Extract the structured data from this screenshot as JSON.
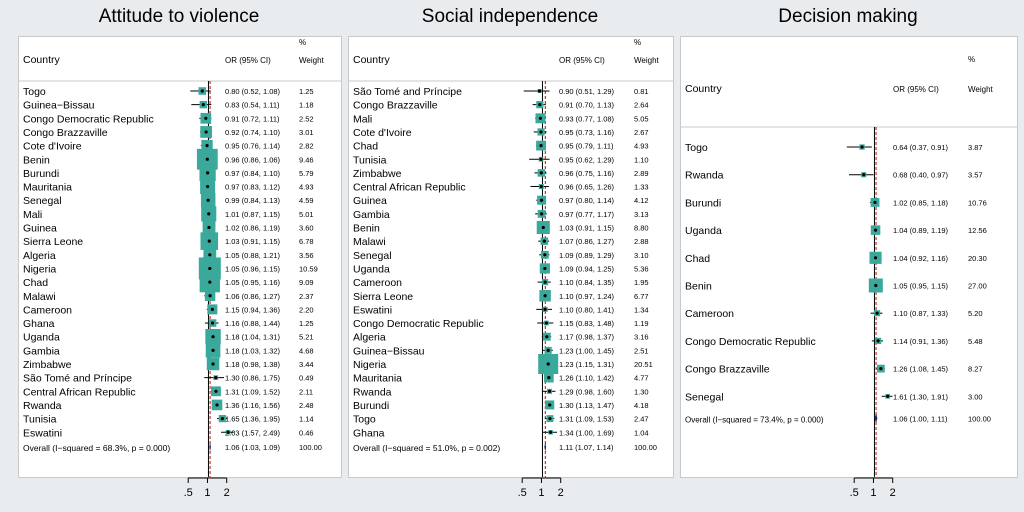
{
  "chart_data": [
    {
      "type": "forest",
      "title": "Attitude to violence",
      "header": {
        "country": "Country",
        "or": "OR (95% CI)",
        "weight_pct": "%",
        "weight": "Weight"
      },
      "x_ticks": [
        ".5",
        "1",
        "2"
      ],
      "x_tick_values": [
        0.5,
        1,
        2
      ],
      "xlim": [
        0.4,
        2.6
      ],
      "overall_line": 1.06,
      "rows": [
        {
          "country": "Togo",
          "or": 0.8,
          "lo": 0.52,
          "hi": 1.08,
          "ci_text": "0.80 (0.52, 1.08)",
          "weight": 1.25,
          "weight_text": "1.25"
        },
        {
          "country": "Guinea−Bissau",
          "or": 0.83,
          "lo": 0.54,
          "hi": 1.11,
          "ci_text": "0.83 (0.54, 1.11)",
          "weight": 1.18,
          "weight_text": "1.18"
        },
        {
          "country": "Congo Democratic Republic",
          "or": 0.91,
          "lo": 0.72,
          "hi": 1.11,
          "ci_text": "0.91 (0.72, 1.11)",
          "weight": 2.52,
          "weight_text": "2.52"
        },
        {
          "country": "Congo Brazzaville",
          "or": 0.92,
          "lo": 0.74,
          "hi": 1.1,
          "ci_text": "0.92 (0.74, 1.10)",
          "weight": 3.01,
          "weight_text": "3.01"
        },
        {
          "country": "Cote d'Ivoire",
          "or": 0.95,
          "lo": 0.76,
          "hi": 1.14,
          "ci_text": "0.95 (0.76, 1.14)",
          "weight": 2.82,
          "weight_text": "2.82"
        },
        {
          "country": "Benin",
          "or": 0.96,
          "lo": 0.86,
          "hi": 1.06,
          "ci_text": "0.96 (0.86, 1.06)",
          "weight": 9.46,
          "weight_text": "9.46"
        },
        {
          "country": "Burundi",
          "or": 0.97,
          "lo": 0.84,
          "hi": 1.1,
          "ci_text": "0.97 (0.84, 1.10)",
          "weight": 5.79,
          "weight_text": "5.79"
        },
        {
          "country": "Mauritania",
          "or": 0.97,
          "lo": 0.83,
          "hi": 1.12,
          "ci_text": "0.97 (0.83, 1.12)",
          "weight": 4.93,
          "weight_text": "4.93"
        },
        {
          "country": "Senegal",
          "or": 0.99,
          "lo": 0.84,
          "hi": 1.13,
          "ci_text": "0.99 (0.84, 1.13)",
          "weight": 4.59,
          "weight_text": "4.59"
        },
        {
          "country": "Mali",
          "or": 1.01,
          "lo": 0.87,
          "hi": 1.15,
          "ci_text": "1.01 (0.87, 1.15)",
          "weight": 5.01,
          "weight_text": "5.01"
        },
        {
          "country": "Guinea",
          "or": 1.02,
          "lo": 0.86,
          "hi": 1.19,
          "ci_text": "1.02 (0.86, 1.19)",
          "weight": 3.6,
          "weight_text": "3.60"
        },
        {
          "country": "Sierra Leone",
          "or": 1.03,
          "lo": 0.91,
          "hi": 1.15,
          "ci_text": "1.03 (0.91, 1.15)",
          "weight": 6.78,
          "weight_text": "6.78"
        },
        {
          "country": "Algeria",
          "or": 1.05,
          "lo": 0.88,
          "hi": 1.21,
          "ci_text": "1.05 (0.88, 1.21)",
          "weight": 3.56,
          "weight_text": "3.56"
        },
        {
          "country": "Nigeria",
          "or": 1.05,
          "lo": 0.96,
          "hi": 1.15,
          "ci_text": "1.05 (0.96, 1.15)",
          "weight": 10.59,
          "weight_text": "10.59"
        },
        {
          "country": "Chad",
          "or": 1.05,
          "lo": 0.95,
          "hi": 1.16,
          "ci_text": "1.05 (0.95, 1.16)",
          "weight": 9.09,
          "weight_text": "9.09"
        },
        {
          "country": "Malawi",
          "or": 1.06,
          "lo": 0.86,
          "hi": 1.27,
          "ci_text": "1.06 (0.86, 1.27)",
          "weight": 2.37,
          "weight_text": "2.37"
        },
        {
          "country": "Cameroon",
          "or": 1.15,
          "lo": 0.94,
          "hi": 1.36,
          "ci_text": "1.15 (0.94, 1.36)",
          "weight": 2.2,
          "weight_text": "2.20"
        },
        {
          "country": "Ghana",
          "or": 1.16,
          "lo": 0.88,
          "hi": 1.44,
          "ci_text": "1.16 (0.88, 1.44)",
          "weight": 1.25,
          "weight_text": "1.25"
        },
        {
          "country": "Uganda",
          "or": 1.18,
          "lo": 1.04,
          "hi": 1.31,
          "ci_text": "1.18 (1.04, 1.31)",
          "weight": 5.21,
          "weight_text": "5.21"
        },
        {
          "country": "Gambia",
          "or": 1.18,
          "lo": 1.03,
          "hi": 1.32,
          "ci_text": "1.18 (1.03, 1.32)",
          "weight": 4.68,
          "weight_text": "4.68"
        },
        {
          "country": "Zimbabwe",
          "or": 1.18,
          "lo": 0.98,
          "hi": 1.38,
          "ci_text": "1.18 (0.98, 1.38)",
          "weight": 3.44,
          "weight_text": "3.44"
        },
        {
          "country": "São Tomé and Príncipe",
          "or": 1.3,
          "lo": 0.86,
          "hi": 1.75,
          "ci_text": "1.30 (0.86, 1.75)",
          "weight": 0.49,
          "weight_text": "0.49"
        },
        {
          "country": "Central African Republic",
          "or": 1.31,
          "lo": 1.09,
          "hi": 1.52,
          "ci_text": "1.31 (1.09, 1.52)",
          "weight": 2.11,
          "weight_text": "2.11"
        },
        {
          "country": "Rwanda",
          "or": 1.36,
          "lo": 1.16,
          "hi": 1.56,
          "ci_text": "1.36 (1.16, 1.56)",
          "weight": 2.48,
          "weight_text": "2.48"
        },
        {
          "country": "Tunisia",
          "or": 1.65,
          "lo": 1.36,
          "hi": 1.95,
          "ci_text": "1.65 (1.36, 1.95)",
          "weight": 1.14,
          "weight_text": "1.14"
        },
        {
          "country": "Eswatini",
          "or": 2.03,
          "lo": 1.57,
          "hi": 2.49,
          "ci_text": "2.03 (1.57, 2.49)",
          "weight": 0.46,
          "weight_text": "0.46"
        }
      ],
      "overall": {
        "label": "Overall  (I−squared = 68.3%, p = 0.000)",
        "or": 1.06,
        "lo": 1.03,
        "hi": 1.09,
        "ci_text": "1.06 (1.03, 1.09)",
        "weight_text": "100.00"
      }
    },
    {
      "type": "forest",
      "title": "Social independence",
      "header": {
        "country": "Country",
        "or": "OR (95% CI)",
        "weight_pct": "%",
        "weight": "Weight"
      },
      "x_ticks": [
        ".5",
        "1",
        "2"
      ],
      "x_tick_values": [
        0.5,
        1,
        2
      ],
      "xlim": [
        0.4,
        2.6
      ],
      "overall_line": 1.11,
      "rows": [
        {
          "country": "São Tomé and Príncipe",
          "or": 0.9,
          "lo": 0.51,
          "hi": 1.29,
          "ci_text": "0.90 (0.51, 1.29)",
          "weight": 0.81,
          "weight_text": "0.81"
        },
        {
          "country": "Congo Brazzaville",
          "or": 0.91,
          "lo": 0.7,
          "hi": 1.13,
          "ci_text": "0.91 (0.70, 1.13)",
          "weight": 2.64,
          "weight_text": "2.64"
        },
        {
          "country": "Mali",
          "or": 0.93,
          "lo": 0.77,
          "hi": 1.08,
          "ci_text": "0.93 (0.77, 1.08)",
          "weight": 5.05,
          "weight_text": "5.05"
        },
        {
          "country": "Cote d'Ivoire",
          "or": 0.95,
          "lo": 0.73,
          "hi": 1.16,
          "ci_text": "0.95 (0.73, 1.16)",
          "weight": 2.67,
          "weight_text": "2.67"
        },
        {
          "country": "Chad",
          "or": 0.95,
          "lo": 0.79,
          "hi": 1.11,
          "ci_text": "0.95 (0.79, 1.11)",
          "weight": 4.93,
          "weight_text": "4.93"
        },
        {
          "country": "Tunisia",
          "or": 0.95,
          "lo": 0.62,
          "hi": 1.29,
          "ci_text": "0.95 (0.62, 1.29)",
          "weight": 1.1,
          "weight_text": "1.10"
        },
        {
          "country": "Zimbabwe",
          "or": 0.96,
          "lo": 0.75,
          "hi": 1.16,
          "ci_text": "0.96 (0.75, 1.16)",
          "weight": 2.89,
          "weight_text": "2.89"
        },
        {
          "country": "Central African Republic",
          "or": 0.96,
          "lo": 0.65,
          "hi": 1.26,
          "ci_text": "0.96 (0.65, 1.26)",
          "weight": 1.33,
          "weight_text": "1.33"
        },
        {
          "country": "Guinea",
          "or": 0.97,
          "lo": 0.8,
          "hi": 1.14,
          "ci_text": "0.97 (0.80, 1.14)",
          "weight": 4.12,
          "weight_text": "4.12"
        },
        {
          "country": "Gambia",
          "or": 0.97,
          "lo": 0.77,
          "hi": 1.17,
          "ci_text": "0.97 (0.77, 1.17)",
          "weight": 3.13,
          "weight_text": "3.13"
        },
        {
          "country": "Benin",
          "or": 1.03,
          "lo": 0.91,
          "hi": 1.15,
          "ci_text": "1.03 (0.91, 1.15)",
          "weight": 8.8,
          "weight_text": "8.80"
        },
        {
          "country": "Malawi",
          "or": 1.07,
          "lo": 0.86,
          "hi": 1.27,
          "ci_text": "1.07 (0.86, 1.27)",
          "weight": 2.88,
          "weight_text": "2.88"
        },
        {
          "country": "Senegal",
          "or": 1.09,
          "lo": 0.89,
          "hi": 1.29,
          "ci_text": "1.09 (0.89, 1.29)",
          "weight": 3.1,
          "weight_text": "3.10"
        },
        {
          "country": "Uganda",
          "or": 1.09,
          "lo": 0.94,
          "hi": 1.25,
          "ci_text": "1.09 (0.94, 1.25)",
          "weight": 5.36,
          "weight_text": "5.36"
        },
        {
          "country": "Cameroon",
          "or": 1.1,
          "lo": 0.84,
          "hi": 1.35,
          "ci_text": "1.10 (0.84, 1.35)",
          "weight": 1.95,
          "weight_text": "1.95"
        },
        {
          "country": "Sierra Leone",
          "or": 1.1,
          "lo": 0.97,
          "hi": 1.24,
          "ci_text": "1.10 (0.97, 1.24)",
          "weight": 6.77,
          "weight_text": "6.77"
        },
        {
          "country": "Eswatini",
          "or": 1.1,
          "lo": 0.8,
          "hi": 1.41,
          "ci_text": "1.10 (0.80, 1.41)",
          "weight": 1.34,
          "weight_text": "1.34"
        },
        {
          "country": "Congo Democratic Republic",
          "or": 1.15,
          "lo": 0.83,
          "hi": 1.48,
          "ci_text": "1.15 (0.83, 1.48)",
          "weight": 1.19,
          "weight_text": "1.19"
        },
        {
          "country": "Algeria",
          "or": 1.17,
          "lo": 0.98,
          "hi": 1.37,
          "ci_text": "1.17 (0.98, 1.37)",
          "weight": 3.16,
          "weight_text": "3.16"
        },
        {
          "country": "Guinea−Bissau",
          "or": 1.23,
          "lo": 1.0,
          "hi": 1.45,
          "ci_text": "1.23 (1.00, 1.45)",
          "weight": 2.51,
          "weight_text": "2.51"
        },
        {
          "country": "Nigeria",
          "or": 1.23,
          "lo": 1.15,
          "hi": 1.31,
          "ci_text": "1.23 (1.15, 1.31)",
          "weight": 20.51,
          "weight_text": "20.51"
        },
        {
          "country": "Mauritania",
          "or": 1.26,
          "lo": 1.1,
          "hi": 1.42,
          "ci_text": "1.26 (1.10, 1.42)",
          "weight": 4.77,
          "weight_text": "4.77"
        },
        {
          "country": "Rwanda",
          "or": 1.29,
          "lo": 0.98,
          "hi": 1.6,
          "ci_text": "1.29 (0.98, 1.60)",
          "weight": 1.3,
          "weight_text": "1.30"
        },
        {
          "country": "Burundi",
          "or": 1.3,
          "lo": 1.13,
          "hi": 1.47,
          "ci_text": "1.30 (1.13, 1.47)",
          "weight": 4.18,
          "weight_text": "4.18"
        },
        {
          "country": "Togo",
          "or": 1.31,
          "lo": 1.09,
          "hi": 1.53,
          "ci_text": "1.31 (1.09, 1.53)",
          "weight": 2.47,
          "weight_text": "2.47"
        },
        {
          "country": "Ghana",
          "or": 1.34,
          "lo": 1.0,
          "hi": 1.69,
          "ci_text": "1.34 (1.00, 1.69)",
          "weight": 1.04,
          "weight_text": "1.04"
        }
      ],
      "overall": {
        "label": "Overall  (I−squared = 51.0%, p = 0.002)",
        "or": 1.11,
        "lo": 1.07,
        "hi": 1.14,
        "ci_text": "1.11 (1.07, 1.14)",
        "weight_text": "100.00"
      }
    },
    {
      "type": "forest",
      "title": "Decision making",
      "header": {
        "country": "Country",
        "or": "OR (95% CI)",
        "weight_pct": "%",
        "weight": "Weight"
      },
      "x_ticks": [
        ".5",
        "1",
        "2"
      ],
      "x_tick_values": [
        0.5,
        1,
        2
      ],
      "xlim": [
        0.4,
        2.6
      ],
      "overall_line": 1.06,
      "rows": [
        {
          "country": "Togo",
          "or": 0.64,
          "lo": 0.37,
          "hi": 0.91,
          "ci_text": "0.64 (0.37, 0.91)",
          "weight": 3.87,
          "weight_text": "3.87"
        },
        {
          "country": "Rwanda",
          "or": 0.68,
          "lo": 0.4,
          "hi": 0.97,
          "ci_text": "0.68 (0.40, 0.97)",
          "weight": 3.57,
          "weight_text": "3.57"
        },
        {
          "country": "Burundi",
          "or": 1.02,
          "lo": 0.85,
          "hi": 1.18,
          "ci_text": "1.02 (0.85, 1.18)",
          "weight": 10.76,
          "weight_text": "10.76"
        },
        {
          "country": "Uganda",
          "or": 1.04,
          "lo": 0.89,
          "hi": 1.19,
          "ci_text": "1.04 (0.89, 1.19)",
          "weight": 12.56,
          "weight_text": "12.56"
        },
        {
          "country": "Chad",
          "or": 1.04,
          "lo": 0.92,
          "hi": 1.16,
          "ci_text": "1.04 (0.92, 1.16)",
          "weight": 20.3,
          "weight_text": "20.30"
        },
        {
          "country": "Benin",
          "or": 1.05,
          "lo": 0.95,
          "hi": 1.15,
          "ci_text": "1.05 (0.95, 1.15)",
          "weight": 27.0,
          "weight_text": "27.00"
        },
        {
          "country": "Cameroon",
          "or": 1.1,
          "lo": 0.87,
          "hi": 1.33,
          "ci_text": "1.10 (0.87, 1.33)",
          "weight": 5.2,
          "weight_text": "5.20"
        },
        {
          "country": "Congo Democratic Republic",
          "or": 1.14,
          "lo": 0.91,
          "hi": 1.36,
          "ci_text": "1.14 (0.91, 1.36)",
          "weight": 5.48,
          "weight_text": "5.48"
        },
        {
          "country": "Congo Brazzaville",
          "or": 1.26,
          "lo": 1.08,
          "hi": 1.45,
          "ci_text": "1.26 (1.08, 1.45)",
          "weight": 8.27,
          "weight_text": "8.27"
        },
        {
          "country": "Senegal",
          "or": 1.61,
          "lo": 1.3,
          "hi": 1.91,
          "ci_text": "1.61 (1.30, 1.91)",
          "weight": 3.0,
          "weight_text": "3.00"
        }
      ],
      "overall": {
        "label": "Overall  (I−squared = 73.4%, p = 0.000)",
        "or": 1.06,
        "lo": 1.0,
        "hi": 1.11,
        "ci_text": "1.06 (1.00, 1.11)",
        "weight_text": "100.00"
      }
    }
  ],
  "colors": {
    "box": "#3aa99b",
    "ci_line": "#000000",
    "overall_line": "#c0392b",
    "diamond": "#1b2a6b",
    "panel_bg": "#ffffff",
    "page_bg": "#e9ecef"
  }
}
